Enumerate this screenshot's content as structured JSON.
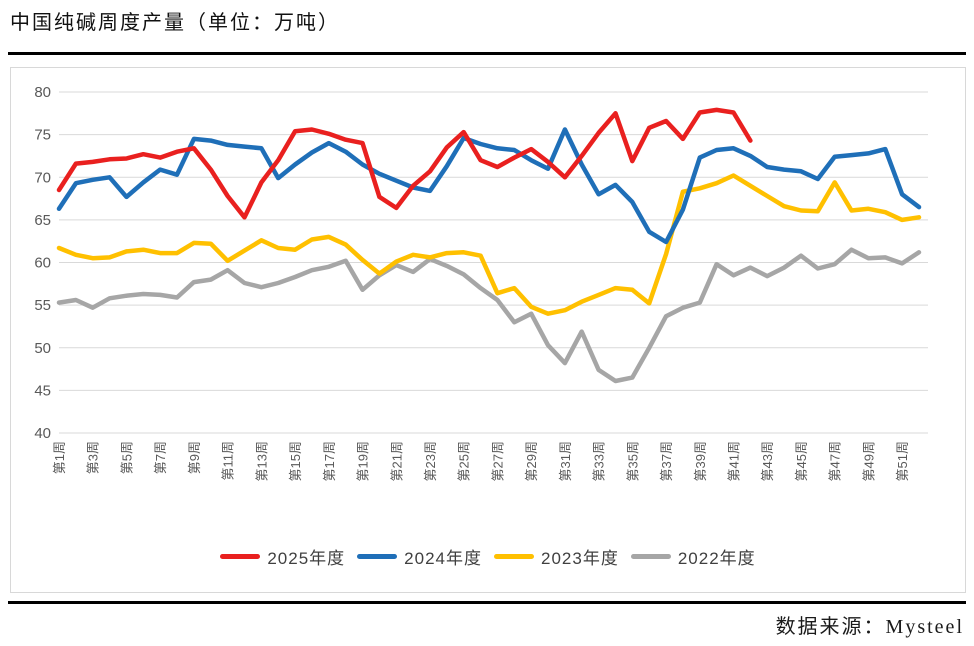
{
  "page": {
    "title": "中国纯碱周度产量（单位：万吨）",
    "source_note": "数据来源：Mysteel"
  },
  "colors": {
    "red": "#e9201f",
    "blue": "#1f6fb8",
    "yellow": "#ffc000",
    "gray": "#a6a6a6",
    "grid": "#d9d9d9",
    "axis_text": "#595959",
    "chart_border": "#d8d8d8",
    "rule": "#000000"
  },
  "chart_data": {
    "type": "line",
    "title": "中国纯碱周度产量（单位：万吨）",
    "ylabel": "万吨",
    "ylim": [
      40,
      80
    ],
    "y_ticks": [
      80,
      75,
      70,
      65,
      60,
      55,
      50,
      45,
      40
    ],
    "x_weeks": 52,
    "x_tick_step": 2,
    "x_tick_labels": [
      "第1周",
      "第3周",
      "第5周",
      "第7周",
      "第9周",
      "第11周",
      "第13周",
      "第15周",
      "第17周",
      "第19周",
      "第21周",
      "第23周",
      "第25周",
      "第27周",
      "第29周",
      "第31周",
      "第33周",
      "第35周",
      "第37周",
      "第39周",
      "第41周",
      "第43周",
      "第45周",
      "第47周",
      "第49周",
      "第51周"
    ],
    "grid": true,
    "legend_position": "bottom",
    "series": [
      {
        "name": "2025年度",
        "color": "#e9201f",
        "start_week": 1,
        "values": [
          68.5,
          71.6,
          71.8,
          72.1,
          72.2,
          72.7,
          72.3,
          73.0,
          73.4,
          70.9,
          67.8,
          65.3,
          69.4,
          72.0,
          75.4,
          75.6,
          75.1,
          74.4,
          74.0,
          67.7,
          66.4,
          69.0,
          70.7,
          73.5,
          75.3,
          72.0,
          71.2,
          72.3,
          73.3,
          71.8,
          70.0,
          72.5,
          75.2,
          77.5,
          71.9,
          75.8,
          76.6,
          74.5,
          77.6,
          77.9,
          77.6,
          74.3
        ]
      },
      {
        "name": "2024年度",
        "color": "#1f6fb8",
        "start_week": 1,
        "values": [
          66.3,
          69.3,
          69.7,
          70.0,
          67.7,
          69.4,
          70.9,
          70.3,
          74.5,
          74.3,
          73.8,
          73.6,
          73.4,
          69.9,
          71.5,
          72.9,
          74.0,
          73.0,
          71.5,
          70.4,
          69.6,
          68.8,
          68.4,
          71.3,
          74.6,
          73.9,
          73.4,
          73.2,
          72.0,
          71.0,
          75.6,
          71.5,
          68.0,
          69.1,
          67.1,
          63.6,
          62.4,
          66.2,
          72.3,
          73.2,
          73.4,
          72.5,
          71.2,
          70.9,
          70.7,
          69.8,
          72.4,
          72.6,
          72.8,
          73.3,
          68.0,
          66.5
        ]
      },
      {
        "name": "2023年度",
        "color": "#ffc000",
        "start_week": 1,
        "values": [
          61.7,
          60.9,
          60.5,
          60.6,
          61.3,
          61.5,
          61.1,
          61.1,
          62.3,
          62.2,
          60.2,
          61.4,
          62.6,
          61.7,
          61.5,
          62.7,
          63.0,
          62.1,
          60.3,
          58.7,
          60.1,
          60.9,
          60.6,
          61.1,
          61.2,
          60.8,
          56.4,
          57.0,
          54.8,
          54.0,
          54.4,
          55.4,
          56.2,
          57.0,
          56.8,
          55.2,
          61.0,
          68.3,
          68.7,
          69.3,
          70.2,
          69.0,
          67.8,
          66.6,
          66.1,
          66.0,
          69.4,
          66.1,
          66.3,
          65.9,
          65.0,
          65.3
        ]
      },
      {
        "name": "2022年度",
        "color": "#a6a6a6",
        "start_week": 1,
        "values": [
          55.3,
          55.6,
          54.7,
          55.8,
          56.1,
          56.3,
          56.2,
          55.9,
          57.7,
          58.0,
          59.1,
          57.6,
          57.1,
          57.6,
          58.3,
          59.1,
          59.5,
          60.2,
          56.8,
          58.5,
          59.7,
          58.9,
          60.4,
          59.6,
          58.6,
          57.0,
          55.6,
          53.0,
          54.0,
          50.3,
          48.2,
          51.9,
          47.4,
          46.1,
          46.5,
          50.0,
          53.7,
          54.7,
          55.3,
          59.8,
          58.5,
          59.4,
          58.4,
          59.4,
          60.8,
          59.3,
          59.8,
          61.5,
          60.5,
          60.6,
          59.9,
          61.2
        ]
      }
    ]
  }
}
